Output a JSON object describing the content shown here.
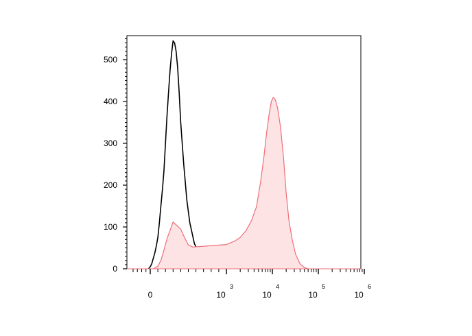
{
  "chart_data": {
    "type": "area",
    "title": "",
    "xlabel": "",
    "ylabel": "",
    "x_scale": "biexponential",
    "xlim": [
      -200,
      1000000
    ],
    "ylim": [
      0,
      560
    ],
    "grid": false,
    "legend": "none",
    "x_ticks": [
      {
        "value": 0,
        "base": "0",
        "exp": ""
      },
      {
        "value": 1000,
        "base": "10",
        "exp": "3"
      },
      {
        "value": 10000,
        "base": "10",
        "exp": "4"
      },
      {
        "value": 100000,
        "base": "10",
        "exp": "5"
      },
      {
        "value": 1000000,
        "base": "10",
        "exp": "6"
      }
    ],
    "y_ticks": [
      {
        "value": 0,
        "label": "0"
      },
      {
        "value": 100,
        "label": "100"
      },
      {
        "value": 200,
        "label": "200"
      },
      {
        "value": 300,
        "label": "300"
      },
      {
        "value": 400,
        "label": "400"
      },
      {
        "value": 500,
        "label": "500"
      }
    ],
    "series": [
      {
        "style": "line",
        "color": "#000000",
        "points": [
          [
            -20,
            0
          ],
          [
            0,
            5
          ],
          [
            20,
            12
          ],
          [
            40,
            25
          ],
          [
            60,
            38
          ],
          [
            80,
            55
          ],
          [
            100,
            75
          ],
          [
            120,
            110
          ],
          [
            140,
            150
          ],
          [
            160,
            190
          ],
          [
            180,
            235
          ],
          [
            200,
            300
          ],
          [
            220,
            365
          ],
          [
            240,
            420
          ],
          [
            260,
            475
          ],
          [
            280,
            515
          ],
          [
            300,
            545
          ],
          [
            320,
            540
          ],
          [
            340,
            520
          ],
          [
            360,
            480
          ],
          [
            380,
            420
          ],
          [
            400,
            350
          ],
          [
            440,
            250
          ],
          [
            480,
            165
          ],
          [
            520,
            110
          ],
          [
            580,
            60
          ],
          [
            650,
            35
          ],
          [
            750,
            15
          ],
          [
            900,
            6
          ],
          [
            1100,
            3
          ],
          [
            1500,
            1.5
          ],
          [
            3000,
            1
          ],
          [
            5000,
            0
          ]
        ]
      },
      {
        "style": "filled",
        "color": "#ee6e78",
        "fill": "#fde3e4",
        "points": [
          [
            40,
            0
          ],
          [
            100,
            6
          ],
          [
            140,
            20
          ],
          [
            180,
            45
          ],
          [
            220,
            72
          ],
          [
            260,
            92
          ],
          [
            300,
            112
          ],
          [
            340,
            105
          ],
          [
            400,
            95
          ],
          [
            450,
            75
          ],
          [
            500,
            57
          ],
          [
            560,
            52
          ],
          [
            700,
            54
          ],
          [
            1000,
            58
          ],
          [
            1500,
            66
          ],
          [
            2000,
            75
          ],
          [
            2700,
            92
          ],
          [
            3500,
            115
          ],
          [
            4500,
            148
          ],
          [
            5500,
            205
          ],
          [
            6500,
            265
          ],
          [
            7500,
            325
          ],
          [
            8500,
            370
          ],
          [
            9500,
            400
          ],
          [
            10500,
            410
          ],
          [
            11500,
            405
          ],
          [
            13000,
            385
          ],
          [
            15000,
            340
          ],
          [
            17500,
            265
          ],
          [
            20000,
            180
          ],
          [
            23000,
            115
          ],
          [
            27000,
            70
          ],
          [
            32000,
            35
          ],
          [
            40000,
            12
          ],
          [
            50000,
            3
          ],
          [
            60000,
            0
          ]
        ]
      }
    ]
  }
}
